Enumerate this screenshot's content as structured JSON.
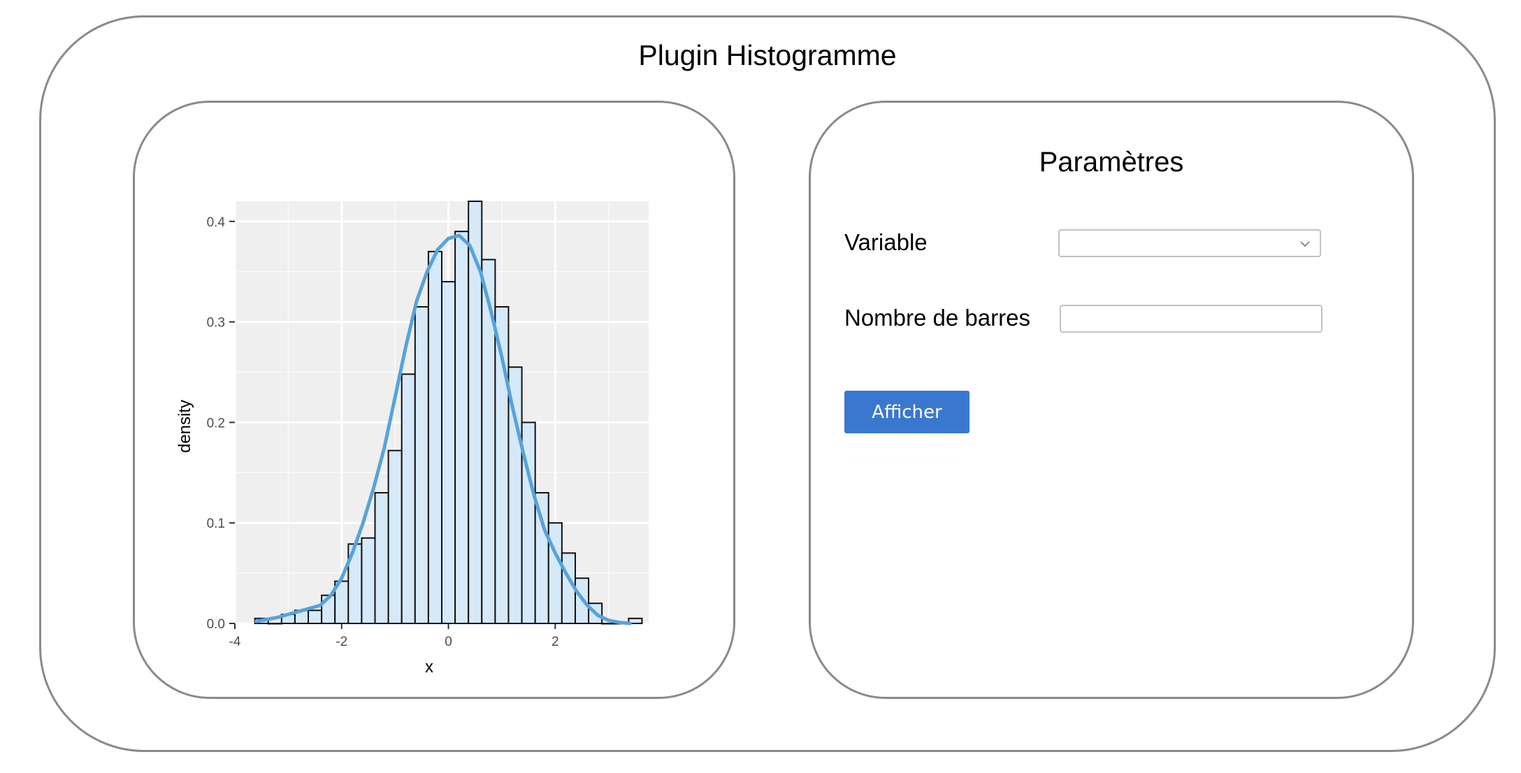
{
  "app": {
    "title": "Plugin Histogramme"
  },
  "params": {
    "title": "Paramètres",
    "variable_label": "Variable",
    "variable_value": "",
    "bins_label": "Nombre de barres",
    "bins_value": "",
    "submit_label": "Afficher"
  },
  "icons": {
    "select_chevron": "chevron-down-icon"
  },
  "colors": {
    "button_bg": "#3a78d0",
    "curve": "#56a3dc",
    "bar_fill": "#d6e9f8",
    "plot_bg": "#efefef"
  },
  "chart_data": {
    "type": "bar",
    "xlabel": "x",
    "ylabel": "density",
    "xlim": [
      -4,
      3.75
    ],
    "ylim": [
      0,
      0.42
    ],
    "x_ticks": [
      -4,
      -2,
      0,
      2
    ],
    "y_ticks": [
      0.0,
      0.1,
      0.2,
      0.3,
      0.4
    ],
    "y_tick_labels": [
      "0.0",
      "0.1",
      "0.2",
      "0.3",
      "0.4"
    ],
    "grid": true,
    "bin_width": 0.25,
    "bins": [
      {
        "x": -3.5,
        "density": 0.005
      },
      {
        "x": -3.25,
        "density": 0.0
      },
      {
        "x": -3.0,
        "density": 0.009
      },
      {
        "x": -2.75,
        "density": 0.013
      },
      {
        "x": -2.5,
        "density": 0.013
      },
      {
        "x": -2.25,
        "density": 0.028
      },
      {
        "x": -2.0,
        "density": 0.042
      },
      {
        "x": -1.75,
        "density": 0.079
      },
      {
        "x": -1.5,
        "density": 0.085
      },
      {
        "x": -1.25,
        "density": 0.13
      },
      {
        "x": -1.0,
        "density": 0.172
      },
      {
        "x": -0.75,
        "density": 0.248
      },
      {
        "x": -0.5,
        "density": 0.315
      },
      {
        "x": -0.25,
        "density": 0.37
      },
      {
        "x": 0.0,
        "density": 0.34
      },
      {
        "x": 0.25,
        "density": 0.39
      },
      {
        "x": 0.5,
        "density": 0.42
      },
      {
        "x": 0.75,
        "density": 0.362
      },
      {
        "x": 1.0,
        "density": 0.315
      },
      {
        "x": 1.25,
        "density": 0.255
      },
      {
        "x": 1.5,
        "density": 0.2
      },
      {
        "x": 1.75,
        "density": 0.13
      },
      {
        "x": 2.0,
        "density": 0.1
      },
      {
        "x": 2.25,
        "density": 0.07
      },
      {
        "x": 2.5,
        "density": 0.045
      },
      {
        "x": 2.75,
        "density": 0.02
      },
      {
        "x": 3.0,
        "density": 0.0
      },
      {
        "x": 3.25,
        "density": 0.0
      },
      {
        "x": 3.5,
        "density": 0.005
      }
    ],
    "density_curve": {
      "x": [
        -3.6,
        -3.2,
        -2.8,
        -2.4,
        -2.2,
        -2.0,
        -1.8,
        -1.6,
        -1.4,
        -1.2,
        -1.0,
        -0.8,
        -0.6,
        -0.4,
        -0.2,
        0.0,
        0.2,
        0.4,
        0.6,
        0.8,
        1.0,
        1.2,
        1.4,
        1.6,
        1.8,
        2.0,
        2.2,
        2.4,
        2.6,
        2.8,
        3.0,
        3.2,
        3.4
      ],
      "y": [
        0.002,
        0.006,
        0.012,
        0.018,
        0.028,
        0.045,
        0.07,
        0.1,
        0.135,
        0.175,
        0.225,
        0.275,
        0.32,
        0.35,
        0.372,
        0.383,
        0.386,
        0.376,
        0.35,
        0.31,
        0.265,
        0.215,
        0.17,
        0.128,
        0.093,
        0.07,
        0.05,
        0.032,
        0.018,
        0.008,
        0.003,
        0.001,
        0.0
      ]
    }
  }
}
